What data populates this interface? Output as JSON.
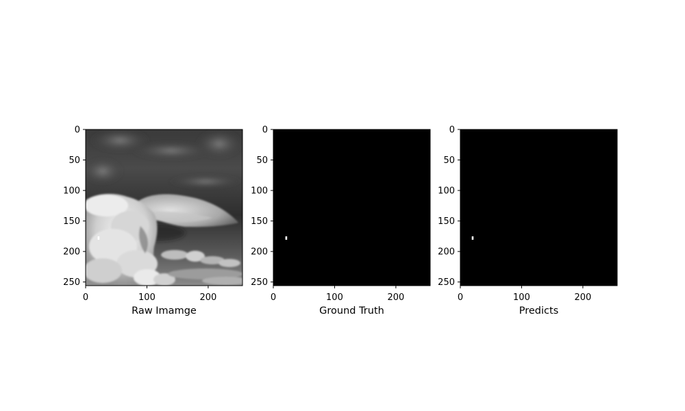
{
  "chart_data": [
    {
      "type": "image",
      "name": "raw-image",
      "xlabel": "Raw Imamge",
      "xlim": [
        0,
        256
      ],
      "ylim": [
        256,
        0
      ],
      "xticks": [
        0,
        100,
        200
      ],
      "yticks": [
        0,
        50,
        100,
        150,
        200,
        250
      ],
      "colormap": "gray",
      "content": "grayscale photo of a towering cumulonimbus cloud with a wide anvil, dark sky above and cloud field below",
      "marker_points": [
        {
          "x": 21,
          "y": 178
        }
      ]
    },
    {
      "type": "image",
      "name": "ground-truth",
      "xlabel": "Ground Truth",
      "xlim": [
        0,
        256
      ],
      "ylim": [
        256,
        0
      ],
      "xticks": [
        0,
        100,
        200
      ],
      "yticks": [
        0,
        50,
        100,
        150,
        200,
        250
      ],
      "colormap": "gray",
      "background": "#000000",
      "marker_points": [
        {
          "x": 21,
          "y": 178
        }
      ]
    },
    {
      "type": "image",
      "name": "predicts",
      "xlabel": "Predicts",
      "xlim": [
        0,
        256
      ],
      "ylim": [
        256,
        0
      ],
      "xticks": [
        0,
        100,
        200
      ],
      "yticks": [
        0,
        50,
        100,
        150,
        200,
        250
      ],
      "colormap": "gray",
      "background": "#000000",
      "marker_points": [
        {
          "x": 20,
          "y": 178
        }
      ]
    }
  ],
  "colors": {
    "axis": "#000000",
    "figure_background": "#ffffff",
    "marker": "#ffffff"
  }
}
